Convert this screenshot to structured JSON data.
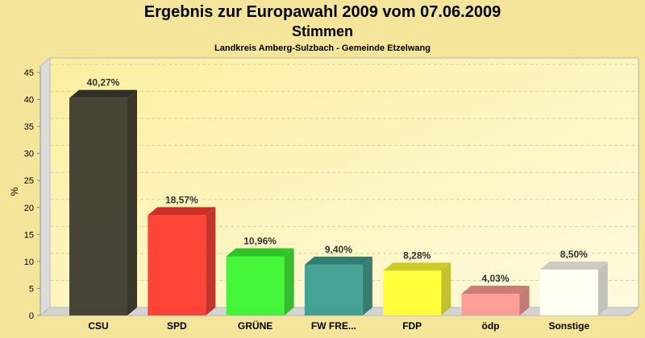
{
  "chart_data": {
    "type": "bar",
    "title": "Ergebnis zur Europawahl 2009 vom 07.06.2009",
    "subtitle": "Stimmen",
    "subsubtitle": "Landkreis Amberg-Sulzbach - Gemeinde Etzelwang",
    "xlabel": "",
    "ylabel": "%",
    "ylim": [
      0,
      45
    ],
    "yticks": [
      "0",
      "5",
      "10",
      "15",
      "20",
      "25",
      "30",
      "35",
      "40",
      "45"
    ],
    "categories": [
      "CSU",
      "SPD",
      "GRÜNE",
      "FW FRE...",
      "FDP",
      "ödp",
      "Sonstige"
    ],
    "values": [
      40.27,
      18.57,
      10.96,
      9.4,
      8.28,
      4.03,
      8.5
    ],
    "labels": [
      "40,27%",
      "18,57%",
      "10,96%",
      "9,40%",
      "8,28%",
      "4,03%",
      "8,50%"
    ],
    "colors": [
      "#3f3b2e",
      "#ff3b30",
      "#3cf532",
      "#3a9e90",
      "#ffff33",
      "#ff9a94",
      "#fffff6"
    ],
    "grid": true
  }
}
